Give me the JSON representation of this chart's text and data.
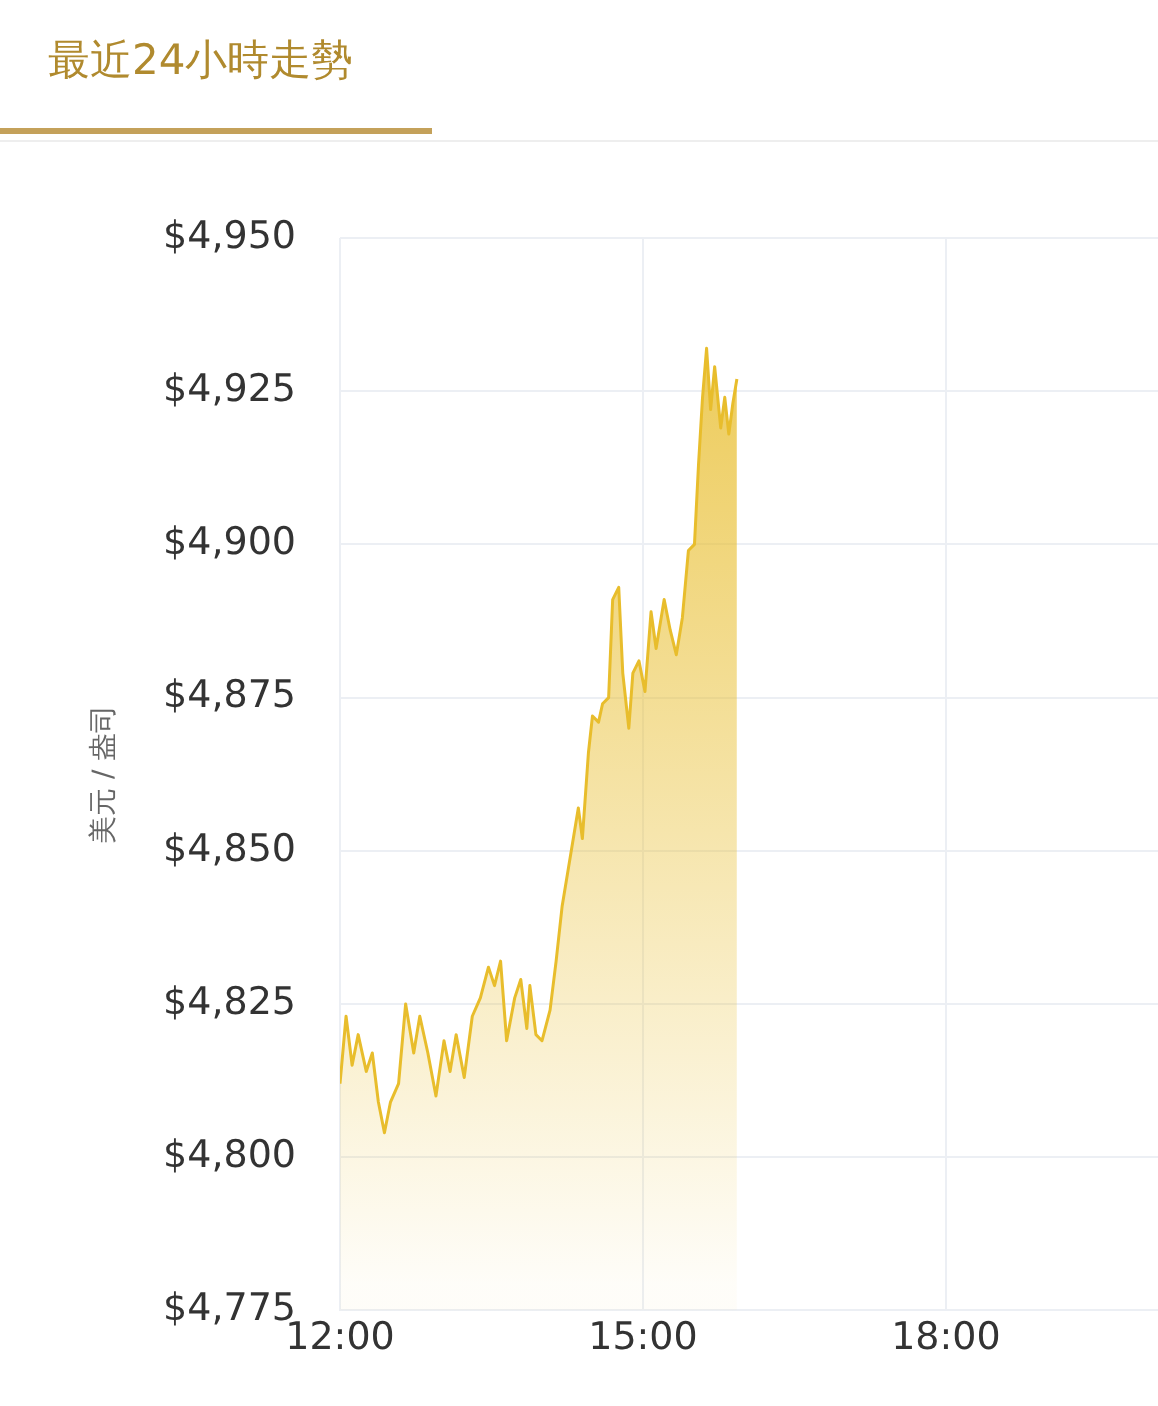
{
  "chart_data": {
    "type": "area",
    "title": "最近24小時走勢",
    "ylabel": "美元 / 盎司",
    "x": [
      12.0,
      12.06,
      12.12,
      12.18,
      12.26,
      12.32,
      12.38,
      12.44,
      12.5,
      12.58,
      12.65,
      12.73,
      12.79,
      12.87,
      12.95,
      13.03,
      13.09,
      13.15,
      13.23,
      13.31,
      13.39,
      13.47,
      13.53,
      13.59,
      13.65,
      13.73,
      13.79,
      13.85,
      13.88,
      13.94,
      14.0,
      14.08,
      14.14,
      14.2,
      14.28,
      14.36,
      14.4,
      14.46,
      14.5,
      14.56,
      14.6,
      14.66,
      14.7,
      14.76,
      14.8,
      14.86,
      14.9,
      14.96,
      15.02,
      15.08,
      15.13,
      15.21,
      15.27,
      15.33,
      15.39,
      15.45,
      15.51,
      15.55,
      15.59,
      15.63,
      15.67,
      15.71,
      15.77,
      15.81,
      15.85,
      15.89,
      15.93
    ],
    "series": [
      {
        "color": "#e8bd2c",
        "values": [
          4812,
          4823,
          4815,
          4820,
          4814,
          4817,
          4809,
          4804,
          4809,
          4812,
          4825,
          4817,
          4823,
          4817,
          4810,
          4819,
          4814,
          4820,
          4813,
          4823,
          4826,
          4831,
          4828,
          4832,
          4819,
          4826,
          4829,
          4821,
          4828,
          4820,
          4819,
          4824,
          4832,
          4841,
          4849,
          4857,
          4852,
          4866,
          4872,
          4871,
          4874,
          4875,
          4891,
          4893,
          4879,
          4870,
          4879,
          4881,
          4876,
          4889,
          4883,
          4891,
          4886,
          4882,
          4888,
          4899,
          4900,
          4913,
          4924,
          4932,
          4922,
          4929,
          4919,
          4924,
          4918,
          4923,
          4927
        ]
      }
    ],
    "xlim": [
      12,
      20.1
    ],
    "xticks": [
      {
        "value": 12,
        "label": "12:00"
      },
      {
        "value": 15,
        "label": "15:00"
      },
      {
        "value": 18,
        "label": "18:00"
      }
    ],
    "ylim": [
      4775,
      4950
    ],
    "yticks": [
      {
        "value": 4775,
        "label": "$4,775"
      },
      {
        "value": 4800,
        "label": "$4,800"
      },
      {
        "value": 4825,
        "label": "$4,825"
      },
      {
        "value": 4850,
        "label": "$4,850"
      },
      {
        "value": 4875,
        "label": "$4,875"
      },
      {
        "value": 4900,
        "label": "$4,900"
      },
      {
        "value": 4925,
        "label": "$4,925"
      },
      {
        "value": 4950,
        "label": "$4,950"
      }
    ],
    "grid": true,
    "legend": false,
    "marker": "none",
    "line_style": "solid"
  }
}
